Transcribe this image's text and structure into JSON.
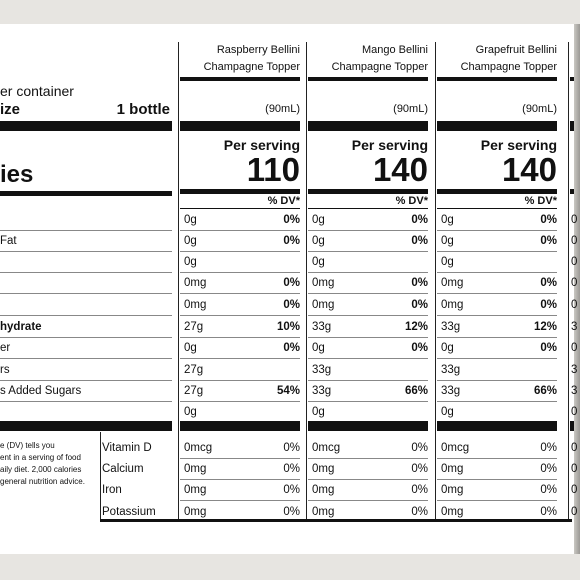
{
  "left_column": {
    "servings_per_container": "er container",
    "serving_size_label": "ize",
    "serving_size_value": "1 bottle",
    "calories_label": "ies",
    "rows": [
      {
        "label": "",
        "bold": false
      },
      {
        "label": "Fat",
        "bold": false
      },
      {
        "label": "",
        "bold": false
      },
      {
        "label": "",
        "bold": false
      },
      {
        "label": "",
        "bold": false
      },
      {
        "label": "hydrate",
        "bold": true
      },
      {
        "label": "er",
        "bold": false
      },
      {
        "label": "rs",
        "bold": false
      },
      {
        "label": "s Added Sugars",
        "bold": false
      },
      {
        "label": "",
        "bold": false
      }
    ],
    "footnote_lines": [
      "e (DV) tells you",
      "ent in a serving of food",
      "aily diet. 2,000 calories",
      "general nutrition advice."
    ],
    "vitamin_labels": [
      "Vitamin D",
      "Calcium",
      "Iron",
      "Potassium"
    ]
  },
  "products": [
    {
      "name_line1": "Raspberry Bellini",
      "name_line2": "Champagne Topper",
      "serving_ml": "(90mL)",
      "per_serving": "Per serving",
      "calories": "110",
      "dv_header": "% DV*",
      "rows": [
        {
          "amount": "0g",
          "dv": "0%"
        },
        {
          "amount": "0g",
          "dv": "0%"
        },
        {
          "amount": "0g",
          "dv": ""
        },
        {
          "amount": "0mg",
          "dv": "0%"
        },
        {
          "amount": "0mg",
          "dv": "0%"
        },
        {
          "amount": "27g",
          "dv": "10%"
        },
        {
          "amount": "0g",
          "dv": "0%"
        },
        {
          "amount": "27g",
          "dv": ""
        },
        {
          "amount": "27g",
          "dv": "54%"
        },
        {
          "amount": "0g",
          "dv": ""
        }
      ],
      "vitamins": [
        {
          "amount": "0mcg",
          "dv": "0%"
        },
        {
          "amount": "0mg",
          "dv": "0%"
        },
        {
          "amount": "0mg",
          "dv": "0%"
        },
        {
          "amount": "0mg",
          "dv": "0%"
        }
      ]
    },
    {
      "name_line1": "Mango Bellini",
      "name_line2": "Champagne Topper",
      "serving_ml": "(90mL)",
      "per_serving": "Per serving",
      "calories": "140",
      "dv_header": "% DV*",
      "rows": [
        {
          "amount": "0g",
          "dv": "0%"
        },
        {
          "amount": "0g",
          "dv": "0%"
        },
        {
          "amount": "0g",
          "dv": ""
        },
        {
          "amount": "0mg",
          "dv": "0%"
        },
        {
          "amount": "0mg",
          "dv": "0%"
        },
        {
          "amount": "33g",
          "dv": "12%"
        },
        {
          "amount": "0g",
          "dv": "0%"
        },
        {
          "amount": "33g",
          "dv": ""
        },
        {
          "amount": "33g",
          "dv": "66%"
        },
        {
          "amount": "0g",
          "dv": ""
        }
      ],
      "vitamins": [
        {
          "amount": "0mcg",
          "dv": "0%"
        },
        {
          "amount": "0mg",
          "dv": "0%"
        },
        {
          "amount": "0mg",
          "dv": "0%"
        },
        {
          "amount": "0mg",
          "dv": "0%"
        }
      ]
    },
    {
      "name_line1": "Grapefruit Bellini",
      "name_line2": "Champagne Topper",
      "serving_ml": "(90mL)",
      "per_serving": "Per serving",
      "calories": "140",
      "dv_header": "% DV*",
      "rows": [
        {
          "amount": "0g",
          "dv": "0%"
        },
        {
          "amount": "0g",
          "dv": "0%"
        },
        {
          "amount": "0g",
          "dv": ""
        },
        {
          "amount": "0mg",
          "dv": "0%"
        },
        {
          "amount": "0mg",
          "dv": "0%"
        },
        {
          "amount": "33g",
          "dv": "12%"
        },
        {
          "amount": "0g",
          "dv": "0%"
        },
        {
          "amount": "33g",
          "dv": ""
        },
        {
          "amount": "33g",
          "dv": "66%"
        },
        {
          "amount": "0g",
          "dv": ""
        }
      ],
      "vitamins": [
        {
          "amount": "0mcg",
          "dv": "0%"
        },
        {
          "amount": "0mg",
          "dv": "0%"
        },
        {
          "amount": "0mg",
          "dv": "0%"
        },
        {
          "amount": "0mg",
          "dv": "0%"
        }
      ]
    }
  ],
  "partial_column": {
    "rows": [
      "0",
      "0",
      "0",
      "0",
      "0",
      "3",
      "0",
      "3",
      "3",
      "0"
    ],
    "vitamins": [
      "0",
      "0",
      "0",
      "0"
    ]
  }
}
